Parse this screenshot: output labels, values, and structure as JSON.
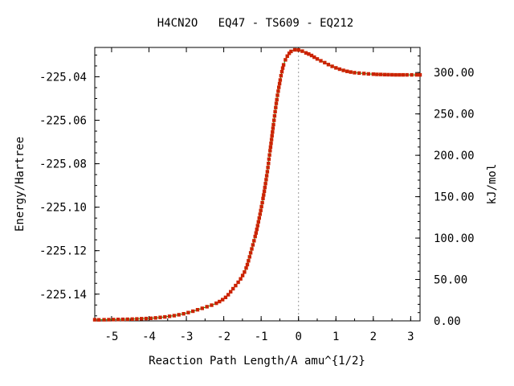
{
  "chart_data": {
    "type": "line",
    "title": "H4CN2O   EQ47 - TS609 - EQ212",
    "xlabel": "Reaction Path Length/A amu^{1/2}",
    "ylabel": "Energy/Hartree",
    "ylabel_right": "kJ/mol",
    "xlim": [
      -5.45,
      3.25
    ],
    "ylim": [
      -225.1523,
      -225.0265
    ],
    "x_ticks": [
      -5,
      -4,
      -3,
      -2,
      -1,
      0,
      1,
      2,
      3
    ],
    "x_tick_labels": [
      "-5",
      "-4",
      "-3",
      "-2",
      "-1",
      "0",
      "1",
      "2",
      "3"
    ],
    "y_ticks": [
      -225.14,
      -225.12,
      -225.1,
      -225.08,
      -225.06,
      -225.04
    ],
    "y_tick_labels": [
      "-225.14",
      "-225.12",
      "-225.10",
      "-225.08",
      "-225.06",
      "-225.04"
    ],
    "y2_ticks": [
      0,
      50,
      100,
      150,
      200,
      250,
      300
    ],
    "y2_tick_labels": [
      "0.00",
      "50.00",
      "100.00",
      "150.00",
      "200.00",
      "250.00",
      "300.00"
    ],
    "y2_zero_energy": -225.1523,
    "hartree_to_kjmol": 2625.5,
    "ts_marker_x": 0,
    "grid": false,
    "colors": {
      "line": "#00aa00",
      "points": "#cc2200",
      "ts_marker": "#999999",
      "axes": "#000000"
    },
    "series": [
      {
        "x": [
          -5.45,
          -5.2,
          -4.95,
          -4.7,
          -4.45,
          -4.2,
          -3.95,
          -3.7,
          -3.45,
          -3.2,
          -2.95,
          -2.7,
          -2.45,
          -2.2,
          -1.95,
          -1.75,
          -1.55,
          -1.4,
          -1.28,
          -1.16,
          -1.05,
          -0.95,
          -0.85,
          -0.76,
          -0.67,
          -0.58,
          -0.49,
          -0.4,
          -0.3,
          -0.2,
          -0.1,
          0.0,
          0.1,
          0.2,
          0.35,
          0.5,
          0.7,
          0.9,
          1.1,
          1.3,
          1.5,
          1.75,
          2.0,
          2.3,
          2.6,
          2.9,
          3.25
        ],
        "y": [
          -225.1518,
          -225.1518,
          -225.1517,
          -225.1516,
          -225.1515,
          -225.1513,
          -225.1511,
          -225.1507,
          -225.1502,
          -225.1495,
          -225.1485,
          -225.1472,
          -225.1458,
          -225.1442,
          -225.1415,
          -225.1375,
          -225.133,
          -225.128,
          -225.121,
          -225.1135,
          -225.105,
          -225.096,
          -225.0855,
          -225.074,
          -225.062,
          -225.0505,
          -225.0415,
          -225.0345,
          -225.0305,
          -225.0283,
          -225.0276,
          -225.0277,
          -225.0282,
          -225.029,
          -225.0302,
          -225.0318,
          -225.0335,
          -225.0352,
          -225.0365,
          -225.0375,
          -225.0381,
          -225.0385,
          -225.0388,
          -225.039,
          -225.0391,
          -225.0391,
          -225.0391
        ]
      }
    ]
  }
}
